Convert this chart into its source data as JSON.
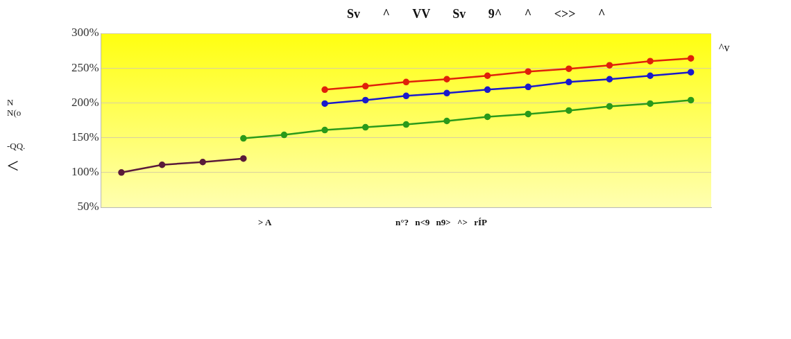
{
  "chart_data": {
    "type": "line",
    "categories": [
      null,
      null,
      null,
      null,
      null,
      null,
      null,
      null,
      null,
      null,
      null,
      null,
      null,
      null,
      null
    ],
    "series": [
      {
        "color": "#5a1a3a",
        "values": [
          100,
          111,
          115,
          120,
          null,
          null,
          null,
          null,
          null,
          null,
          null,
          null,
          null,
          null,
          null
        ]
      },
      {
        "color": "#2a9a1a",
        "values": [
          null,
          null,
          null,
          149,
          154,
          161,
          165,
          169,
          174,
          180,
          184,
          189,
          195,
          199,
          204
        ]
      },
      {
        "color": "#1a1acc",
        "values": [
          null,
          null,
          null,
          null,
          null,
          199,
          204,
          210,
          214,
          219,
          223,
          230,
          234,
          239,
          244
        ]
      },
      {
        "color": "#e0200a",
        "values": [
          null,
          null,
          null,
          null,
          null,
          219,
          224,
          230,
          234,
          239,
          245,
          249,
          254,
          260,
          264
        ]
      }
    ],
    "ylim": [
      50,
      300
    ],
    "yticks": [
      {
        "value": 50,
        "label": "50%"
      },
      {
        "value": 100,
        "label": "100%"
      },
      {
        "value": 150,
        "label": "150%"
      },
      {
        "value": 200,
        "label": "200%"
      },
      {
        "value": 250,
        "label": "250%"
      },
      {
        "value": 300,
        "label": "300%"
      }
    ],
    "grid": "y",
    "tick_labels": "y",
    "marker": "circle",
    "line_style": "solid",
    "legend": false,
    "annotations": [
      "Sv ^ VV Sv 9^ ^ <>> ^",
      "^v",
      "N",
      "N(o",
      "-QQ.",
      "<",
      "> A",
      "n°? n<9 n9> ^> rÍP"
    ]
  }
}
